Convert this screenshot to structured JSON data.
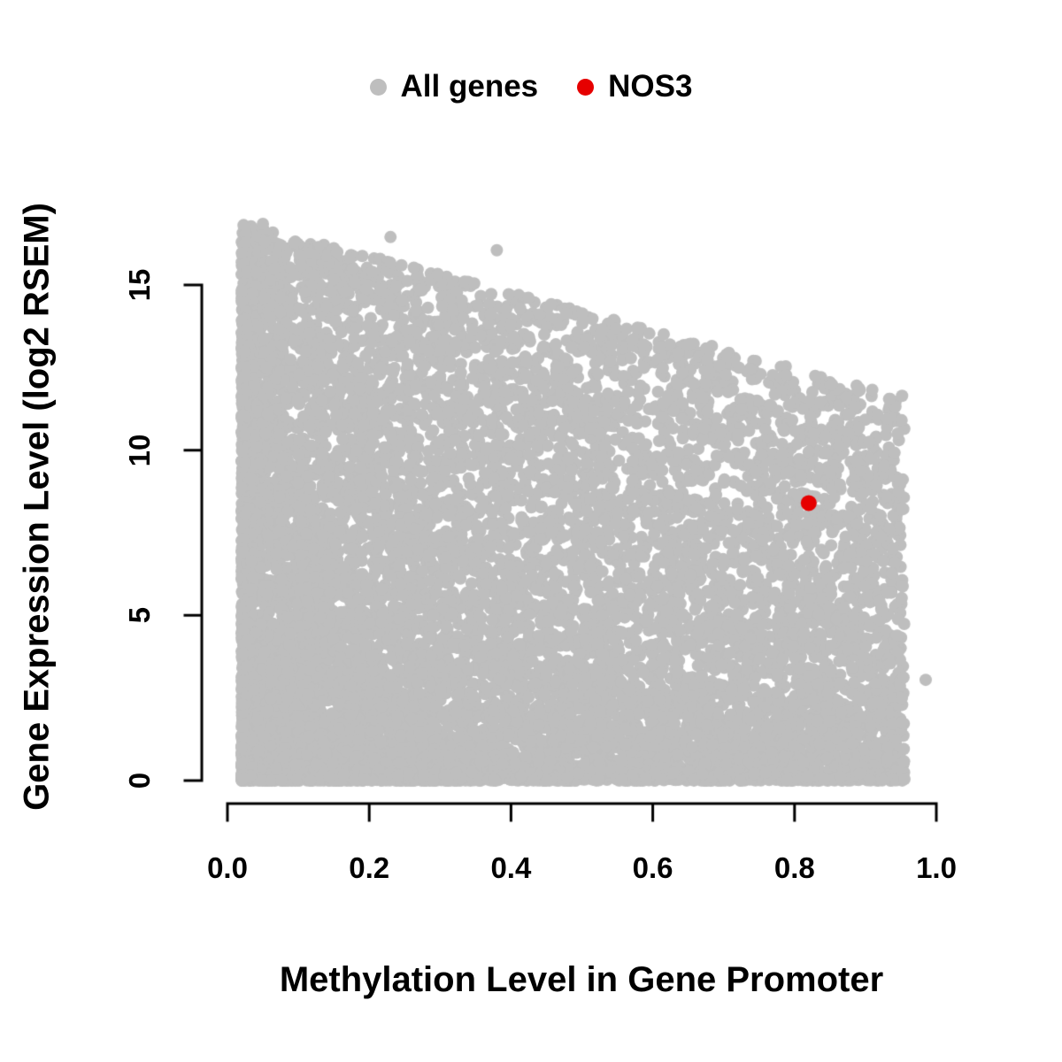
{
  "chart_data": {
    "type": "scatter",
    "title": "",
    "xlabel": "Methylation Level in Gene Promoter",
    "ylabel": "Gene Expression Level (log2 RSEM)",
    "xlim": [
      0,
      1.0
    ],
    "ylim": [
      0,
      17
    ],
    "grid": false,
    "legend_position": "top-center",
    "x_ticks": {
      "values": [
        0,
        0.2,
        0.4,
        0.6,
        0.8,
        1.0
      ],
      "labels": [
        "0.0",
        "0.2",
        "0.4",
        "0.6",
        "0.8",
        "1.0"
      ]
    },
    "y_ticks": {
      "values": [
        0,
        5,
        10,
        15
      ],
      "labels": [
        "0",
        "5",
        "10",
        "15"
      ]
    },
    "series": [
      {
        "name": "All genes",
        "color": "#BEBEBE",
        "marker": "filled-circle",
        "marker_radius_px": 7,
        "point_count": 11000,
        "generator": {
          "seed": 1234567,
          "x_min": 0.02,
          "x_max": 0.955,
          "x_skew": 1.55,
          "envelope_y_at_x0": 17.0,
          "envelope_slope": -5.6,
          "y_skew": 1.75
        },
        "extra_points": [
          [
            0.985,
            3.05
          ],
          [
            0.38,
            16.05
          ],
          [
            0.23,
            16.45
          ],
          [
            0.05,
            16.85
          ],
          [
            0.155,
            16.0
          ]
        ]
      },
      {
        "name": "NOS3",
        "color": "#E60000",
        "marker": "filled-circle",
        "marker_radius_px": 9,
        "points": [
          [
            0.82,
            8.4
          ]
        ]
      }
    ]
  }
}
